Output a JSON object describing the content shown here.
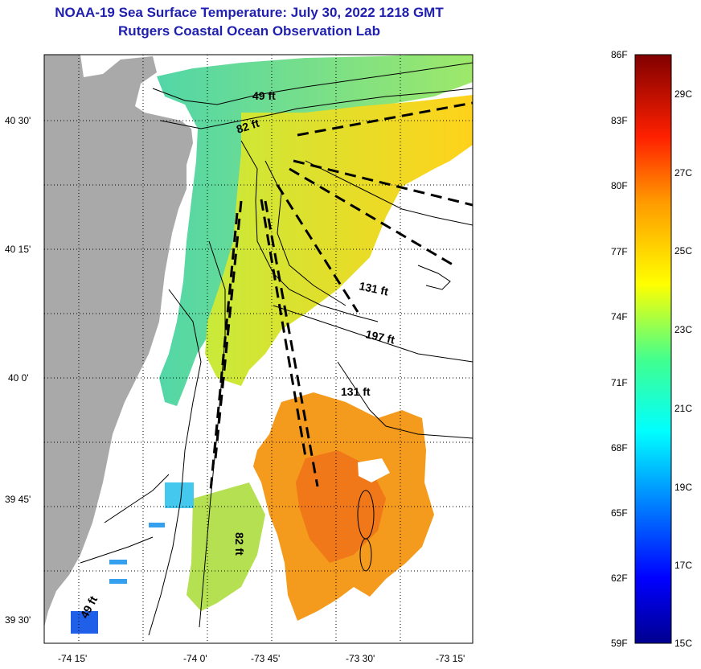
{
  "header": {
    "title": "NOAA-19 Sea Surface Temperature:  July 30, 2022 1218 GMT",
    "subtitle": "Rutgers Coastal Ocean Observation Lab"
  },
  "map": {
    "lat_ticks": [
      "40 30'",
      "40 15'",
      "40 0'",
      "39 45'",
      "39 30'"
    ],
    "lon_ticks": [
      "-74 15'",
      "-74 0'",
      "-73 45'",
      "-73 30'",
      "-73 15'"
    ],
    "depth_labels": [
      "49 ft",
      "82 ft",
      "131 ft",
      "197 ft",
      "131 ft",
      "82 ft",
      "49 ft"
    ],
    "colors": {
      "land": "#a9a9a9",
      "cloud_or_no_data": "#ffffff",
      "contour": "#000000"
    }
  },
  "colorbar": {
    "f_labels": [
      "86F",
      "83F",
      "80F",
      "77F",
      "74F",
      "71F",
      "68F",
      "65F",
      "62F",
      "59F"
    ],
    "c_labels": [
      "29C",
      "27C",
      "25C",
      "23C",
      "21C",
      "19C",
      "17C",
      "15C"
    ],
    "range_f": [
      59,
      86
    ],
    "range_c": [
      15,
      30
    ]
  }
}
